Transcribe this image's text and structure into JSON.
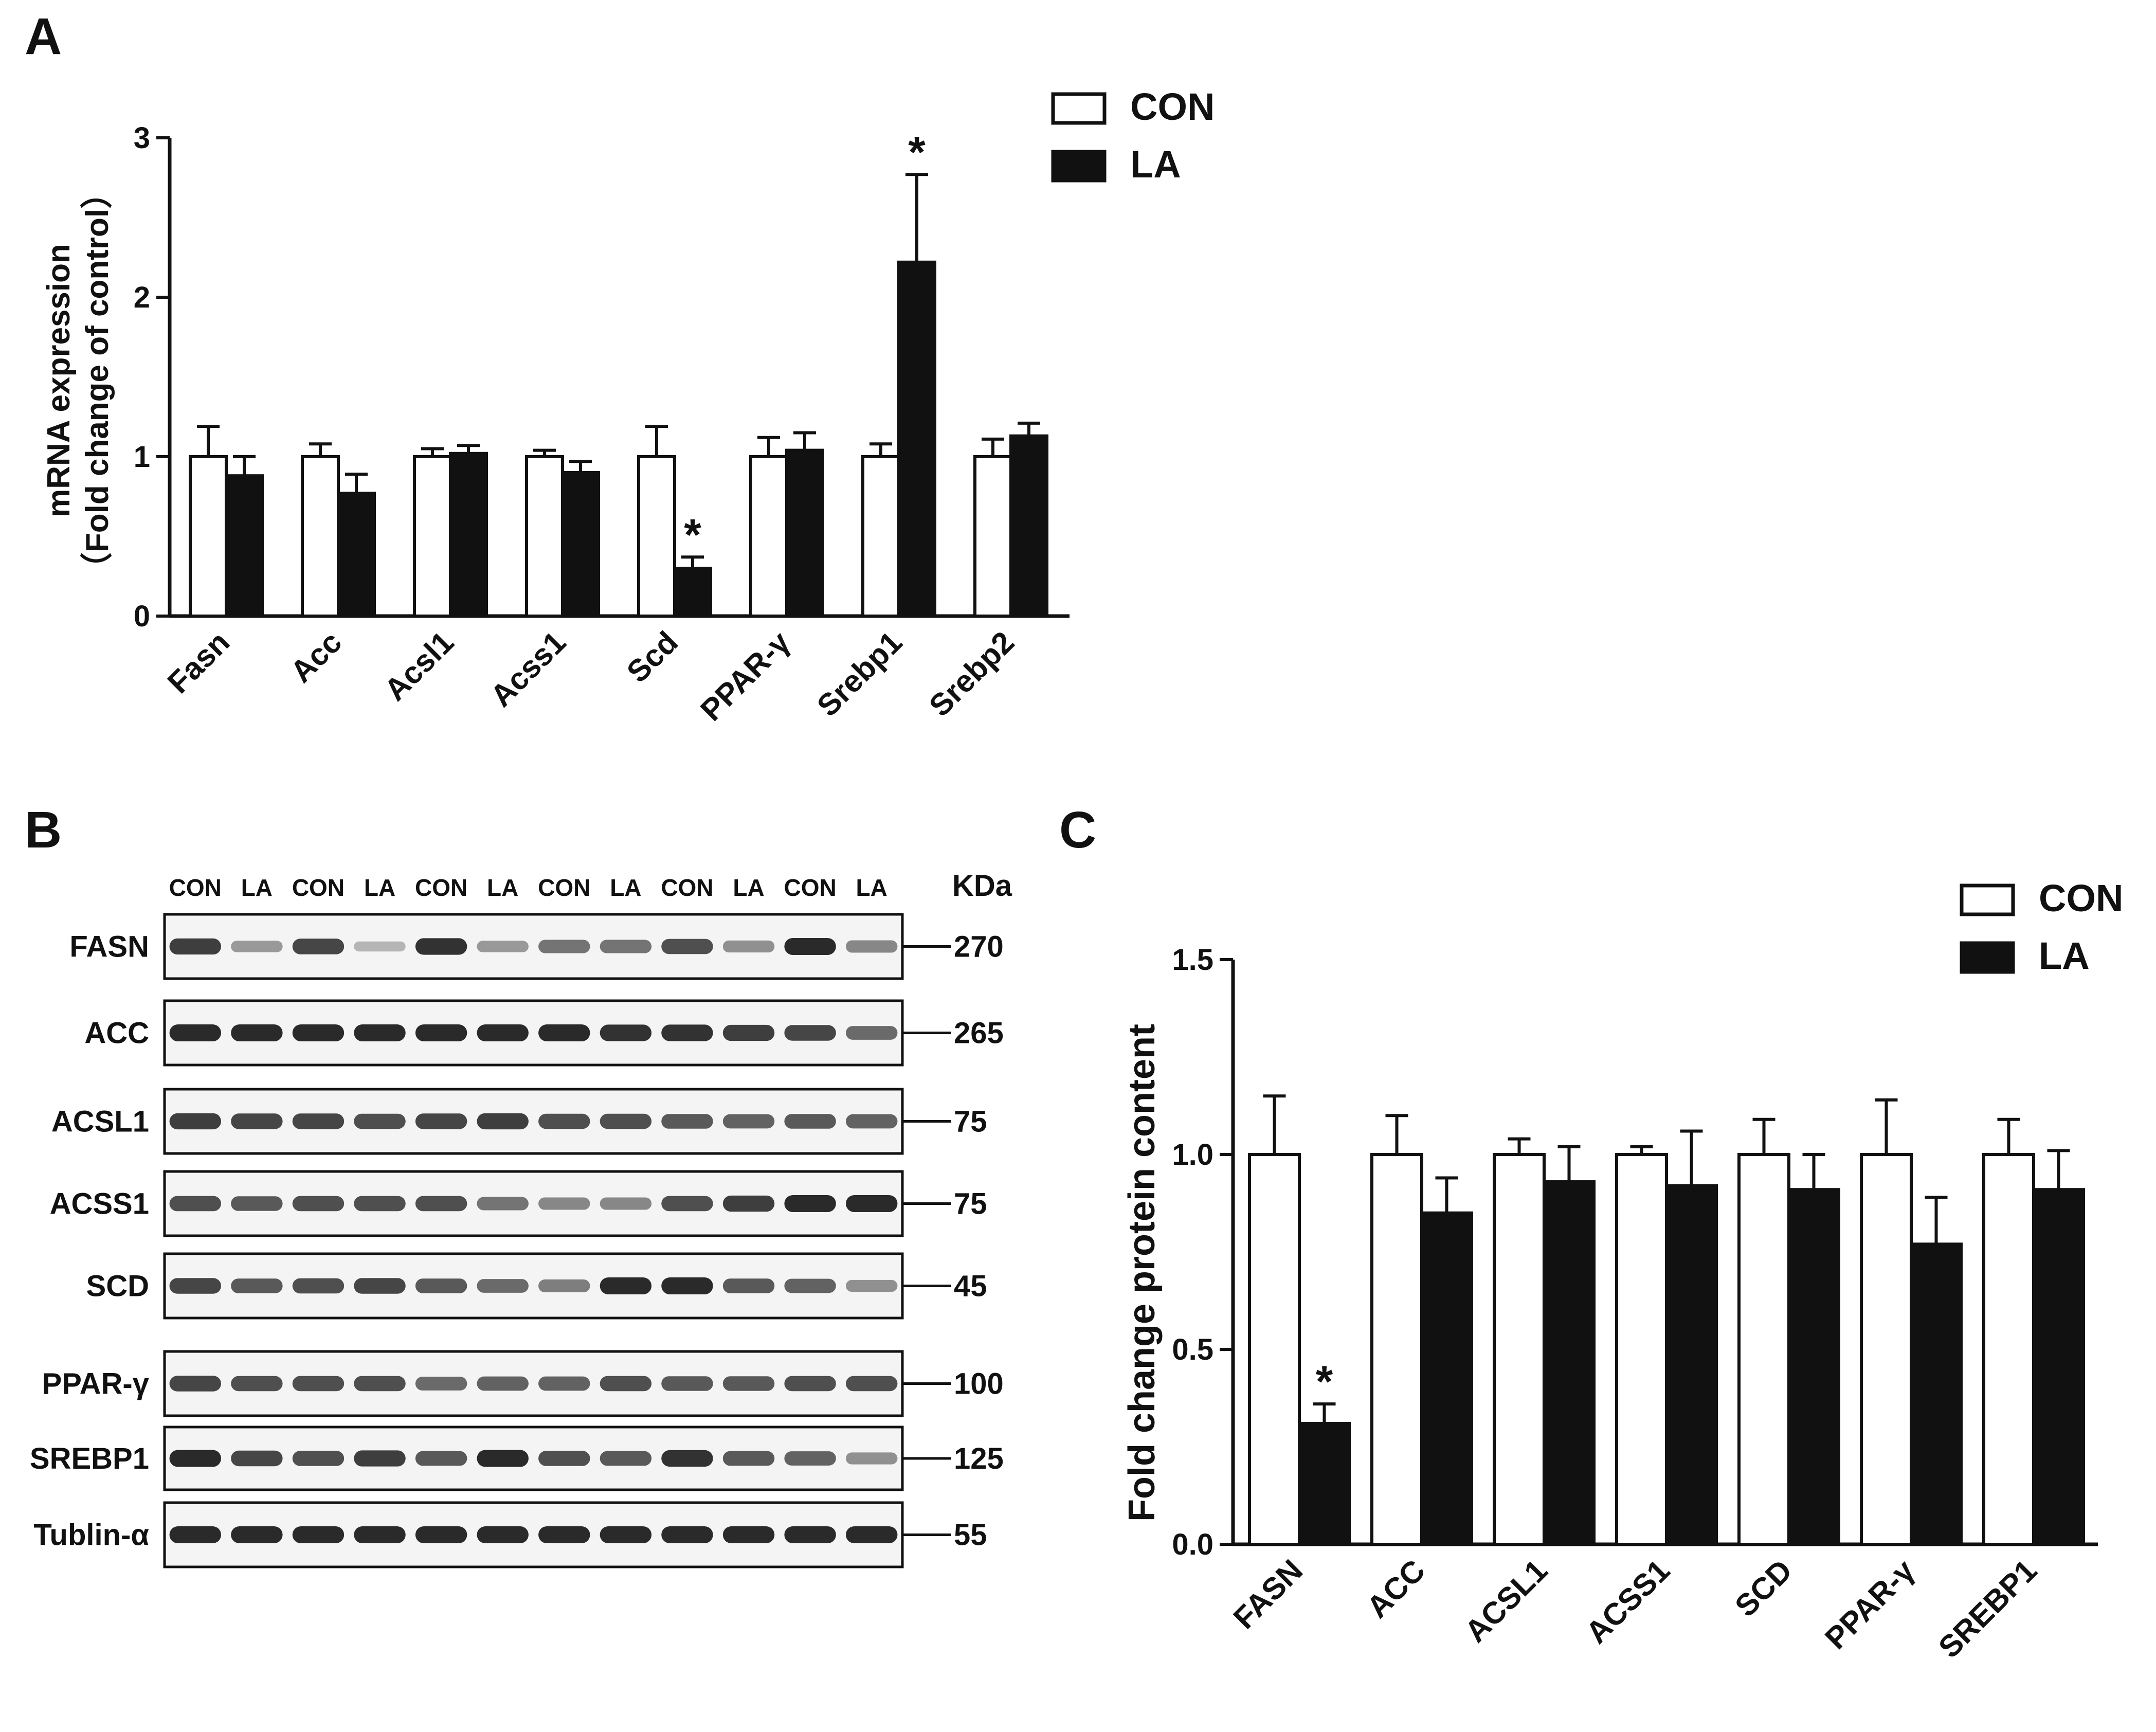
{
  "panels": {
    "a": "A",
    "b": "B",
    "c": "C"
  },
  "colors": {
    "con": "#ffffff",
    "la": "#111111",
    "stroke": "#111111",
    "band": "#1a1a1a"
  },
  "chart_data": [
    {
      "id": "A",
      "type": "bar",
      "title": "",
      "xlabel": "",
      "ylabel_line1": "mRNA expression",
      "ylabel_line2": "（Fold change of control）",
      "ylim": [
        0,
        3
      ],
      "yticks": [
        {
          "value": 0,
          "label": "0"
        },
        {
          "value": 1,
          "label": "1"
        },
        {
          "value": 2,
          "label": "2"
        },
        {
          "value": 3,
          "label": "3"
        }
      ],
      "categories": [
        "Fasn",
        "Acc",
        "Acsl1",
        "Acss1",
        "Scd",
        "PPAR-γ",
        "Srebp1",
        "Srebp2"
      ],
      "series": [
        {
          "name": "CON",
          "values": [
            1.0,
            1.0,
            1.0,
            1.0,
            1.0,
            1.0,
            1.0,
            1.0
          ],
          "errors": [
            0.19,
            0.08,
            0.05,
            0.04,
            0.19,
            0.12,
            0.08,
            0.11
          ]
        },
        {
          "name": "LA",
          "values": [
            0.88,
            0.77,
            1.02,
            0.9,
            0.3,
            1.04,
            2.22,
            1.13
          ],
          "errors": [
            0.12,
            0.12,
            0.05,
            0.07,
            0.07,
            0.11,
            0.55,
            0.08
          ]
        }
      ],
      "significance": [
        {
          "category": "Scd",
          "series": "LA",
          "label": "*"
        },
        {
          "category": "Srebp1",
          "series": "LA",
          "label": "*"
        }
      ],
      "legend": {
        "position": "top-right",
        "entries": [
          "CON",
          "LA"
        ]
      }
    },
    {
      "id": "C",
      "type": "bar",
      "title": "",
      "xlabel": "",
      "ylabel": "Fold change protein content",
      "ylim": [
        0,
        1.5
      ],
      "yticks": [
        {
          "value": 0,
          "label": "0.0"
        },
        {
          "value": 0.5,
          "label": "0.5"
        },
        {
          "value": 1.0,
          "label": "1.0"
        },
        {
          "value": 1.5,
          "label": "1.5"
        }
      ],
      "categories": [
        "FASN",
        "ACC",
        "ACSL1",
        "ACSS1",
        "SCD",
        "PPAR-γ",
        "SREBP1"
      ],
      "series": [
        {
          "name": "CON",
          "values": [
            1.0,
            1.0,
            1.0,
            1.0,
            1.0,
            1.0,
            1.0
          ],
          "errors": [
            0.15,
            0.1,
            0.04,
            0.02,
            0.09,
            0.14,
            0.09
          ]
        },
        {
          "name": "LA",
          "values": [
            0.31,
            0.85,
            0.93,
            0.92,
            0.91,
            0.77,
            0.91
          ],
          "errors": [
            0.05,
            0.09,
            0.09,
            0.14,
            0.09,
            0.12,
            0.1
          ]
        }
      ],
      "significance": [
        {
          "category": "FASN",
          "series": "LA",
          "label": "*"
        }
      ],
      "legend": {
        "position": "top-right",
        "entries": [
          "CON",
          "LA"
        ]
      }
    }
  ],
  "blot": {
    "lanes": [
      "CON",
      "LA",
      "CON",
      "LA",
      "CON",
      "LA",
      "CON",
      "LA",
      "CON",
      "LA",
      "CON",
      "LA"
    ],
    "kda_header": "KDa",
    "rows": [
      {
        "protein": "FASN",
        "kda": "270",
        "intensities": [
          0.85,
          0.35,
          0.8,
          0.2,
          0.9,
          0.35,
          0.55,
          0.55,
          0.75,
          0.4,
          0.95,
          0.45
        ]
      },
      {
        "protein": "ACC",
        "kda": "265",
        "intensities": [
          0.95,
          0.95,
          0.95,
          0.95,
          0.95,
          0.95,
          0.95,
          0.9,
          0.9,
          0.85,
          0.8,
          0.6
        ]
      },
      {
        "protein": "ACSL1",
        "kda": "75",
        "intensities": [
          0.85,
          0.8,
          0.8,
          0.75,
          0.8,
          0.85,
          0.75,
          0.75,
          0.7,
          0.65,
          0.7,
          0.65
        ]
      },
      {
        "protein": "ACSS1",
        "kda": "75",
        "intensities": [
          0.75,
          0.7,
          0.75,
          0.75,
          0.75,
          0.55,
          0.45,
          0.45,
          0.75,
          0.85,
          0.95,
          0.95
        ]
      },
      {
        "protein": "SCD",
        "kda": "45",
        "intensities": [
          0.8,
          0.7,
          0.75,
          0.8,
          0.7,
          0.6,
          0.5,
          0.95,
          0.95,
          0.7,
          0.65,
          0.4
        ]
      },
      {
        "protein": "PPAR-γ",
        "kda": "100",
        "intensities": [
          0.8,
          0.75,
          0.75,
          0.75,
          0.6,
          0.65,
          0.65,
          0.75,
          0.7,
          0.7,
          0.75,
          0.75
        ]
      },
      {
        "protein": "SREBP1",
        "kda": "125",
        "intensities": [
          0.95,
          0.8,
          0.75,
          0.85,
          0.7,
          0.95,
          0.75,
          0.7,
          0.9,
          0.7,
          0.65,
          0.4
        ]
      },
      {
        "protein": "Tublin-α",
        "kda": "55",
        "intensities": [
          0.95,
          0.95,
          0.95,
          0.95,
          0.95,
          0.95,
          0.95,
          0.95,
          0.95,
          0.95,
          0.95,
          0.95
        ]
      }
    ]
  }
}
